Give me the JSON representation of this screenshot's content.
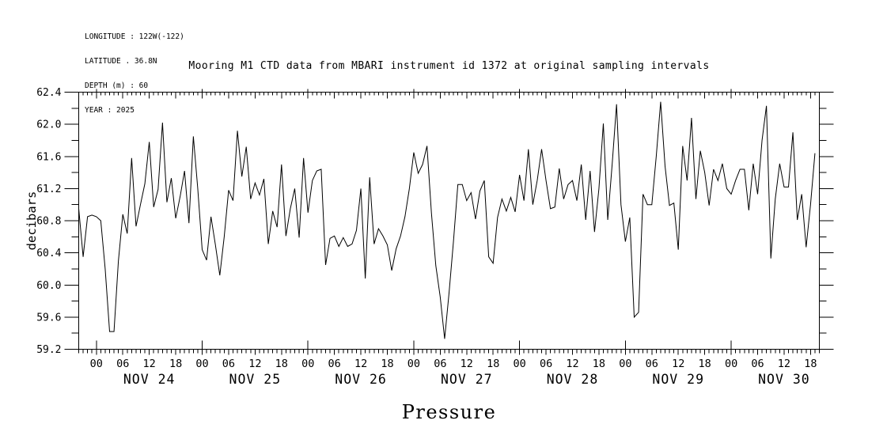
{
  "meta_block": {
    "longitude_line": "LONGITUDE : 122W(-122)",
    "latitude_line": "LATITUDE . 36.8N",
    "depth_line": "DEPTH (m) : 60",
    "year_line": "YEAR : 2025"
  },
  "title": "Mooring M1 CTD data from MBARI instrument id 1372 at original sampling intervals",
  "colors": {
    "line": "#000000",
    "background": "#ffffff",
    "text": "#000000"
  },
  "chart_data": {
    "type": "line",
    "title": "Mooring M1 CTD data from MBARI instrument id 1372 at original sampling intervals",
    "xlabel": "Pressure",
    "ylabel": "decibars",
    "ylim": [
      59.2,
      62.4
    ],
    "y_major_tick": 0.4,
    "y_minor_tick": 0.2,
    "y_tick_labels": [
      "59.2",
      "59.6",
      "60.0",
      "60.4",
      "60.8",
      "61.2",
      "61.6",
      "62.0",
      "62.4"
    ],
    "x_hour_labels": [
      "00",
      "06",
      "12",
      "18"
    ],
    "x_day_labels": [
      "NOV 24",
      "NOV 25",
      "NOV 26",
      "NOV 27",
      "NOV 28",
      "NOV 29",
      "NOV 30"
    ],
    "x_start_hour": -4,
    "x_end_hour": 164,
    "grid": false,
    "legend": "none",
    "series": [
      {
        "name": "pressure",
        "units": "decibars",
        "start_time": "NOV 23 20:00",
        "end_time": "NOV 30 19:00",
        "sample_interval_hours": 1,
        "values": [
          60.95,
          60.35,
          60.85,
          60.87,
          60.85,
          60.8,
          60.2,
          59.42,
          59.42,
          60.3,
          60.88,
          60.64,
          61.58,
          60.73,
          61.0,
          61.26,
          61.78,
          60.97,
          61.19,
          62.02,
          61.03,
          61.33,
          60.83,
          61.1,
          61.42,
          60.77,
          61.85,
          61.2,
          60.44,
          60.31,
          60.85,
          60.5,
          60.12,
          60.6,
          61.18,
          61.05,
          61.92,
          61.35,
          61.72,
          61.07,
          61.27,
          61.12,
          61.32,
          60.51,
          60.92,
          60.72,
          61.5,
          60.61,
          60.95,
          61.2,
          60.59,
          61.58,
          60.9,
          61.3,
          61.42,
          61.44,
          60.25,
          60.58,
          60.61,
          60.48,
          60.59,
          60.48,
          60.51,
          60.68,
          61.2,
          60.08,
          61.34,
          60.51,
          60.7,
          60.61,
          60.5,
          60.18,
          60.45,
          60.61,
          60.85,
          61.2,
          61.65,
          61.39,
          61.5,
          61.73,
          60.9,
          60.24,
          59.85,
          59.33,
          59.9,
          60.54,
          61.25,
          61.25,
          61.05,
          61.15,
          60.82,
          61.17,
          61.3,
          60.35,
          60.27,
          60.84,
          61.07,
          60.92,
          61.09,
          60.91,
          61.37,
          61.05,
          61.69,
          61.0,
          61.3,
          61.69,
          61.3,
          60.95,
          60.97,
          61.45,
          61.07,
          61.25,
          61.3,
          61.05,
          61.5,
          60.81,
          61.42,
          60.66,
          61.2,
          62.01,
          60.81,
          61.5,
          62.25,
          61.0,
          60.54,
          60.84,
          59.6,
          59.66,
          61.13,
          61.0,
          61.0,
          61.6,
          62.28,
          61.48,
          60.99,
          61.02,
          60.44,
          61.73,
          61.3,
          62.08,
          61.07,
          61.67,
          61.4,
          60.99,
          61.44,
          61.3,
          61.51,
          61.2,
          61.13,
          61.3,
          61.44,
          61.44,
          60.93,
          61.51,
          61.13,
          61.8,
          62.23,
          60.33,
          61.07,
          61.51,
          61.22,
          61.22,
          61.9,
          60.81,
          61.13,
          60.47,
          61.0,
          61.64
        ]
      }
    ]
  }
}
